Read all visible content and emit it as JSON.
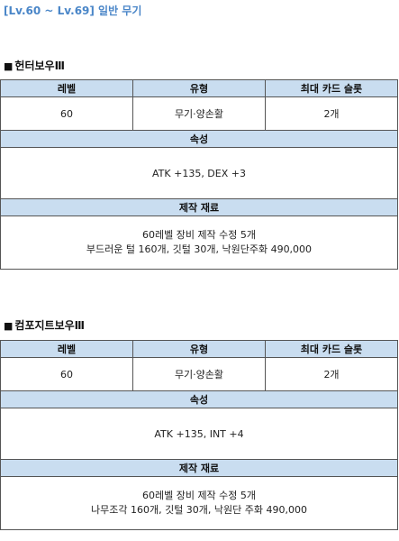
{
  "page_title": "[Lv.60 ~ Lv.69] 일반 무기",
  "headers": {
    "level": "레벨",
    "type": "유형",
    "slots": "최대 카드 슬롯",
    "attributes": "속성",
    "materials": "제작 재료"
  },
  "items": [
    {
      "name": "헌터보우Ⅲ",
      "level": "60",
      "type": "무기·양손활",
      "slots": "2개",
      "attributes": "ATK +135, DEX +3",
      "materials": [
        "60레벨 장비 제작 수정 5개",
        "부드러운 털 160개, 깃털 30개, 낙원단주화 490,000"
      ]
    },
    {
      "name": "컴포지트보우Ⅲ",
      "level": "60",
      "type": "무기·양손활",
      "slots": "2개",
      "attributes": "ATK +135, INT +4",
      "materials": [
        "60레벨 장비 제작 수정 5개",
        "나무조각 160개, 깃털 30개, 낙원단 주화 490,000"
      ]
    }
  ]
}
